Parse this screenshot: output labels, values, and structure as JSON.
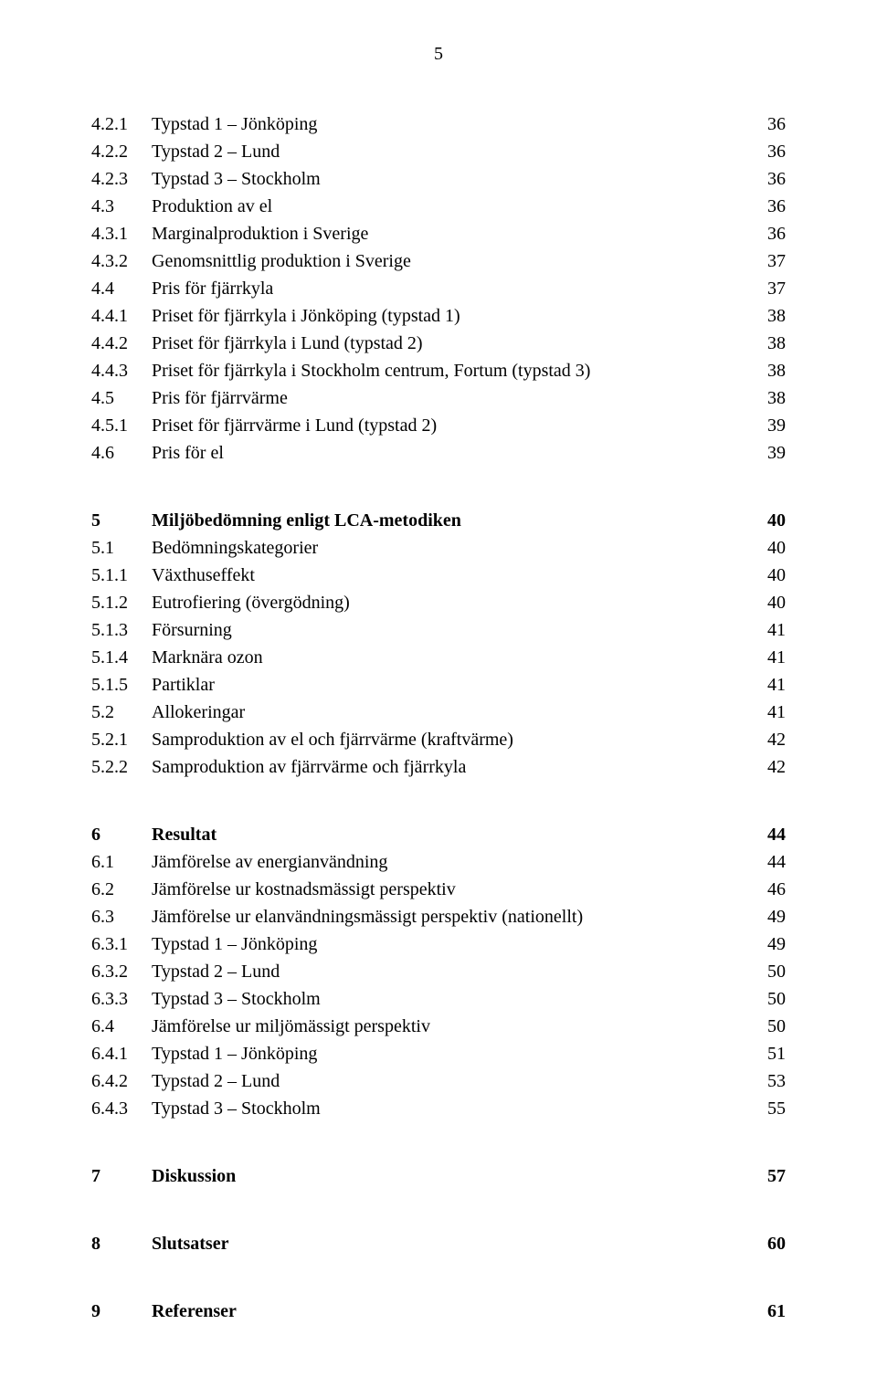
{
  "pageNumber": "5",
  "groups": [
    {
      "head": null,
      "entries": [
        {
          "num": "4.2.1",
          "title": "Typstad 1 – Jönköping",
          "page": "36"
        },
        {
          "num": "4.2.2",
          "title": "Typstad 2 – Lund",
          "page": "36"
        },
        {
          "num": "4.2.3",
          "title": "Typstad 3 – Stockholm",
          "page": "36"
        },
        {
          "num": "4.3",
          "title": "Produktion av el",
          "page": "36"
        },
        {
          "num": "4.3.1",
          "title": "Marginalproduktion i Sverige",
          "page": "36"
        },
        {
          "num": "4.3.2",
          "title": "Genomsnittlig produktion i Sverige",
          "page": "37"
        },
        {
          "num": "4.4",
          "title": "Pris för fjärrkyla",
          "page": "37"
        },
        {
          "num": "4.4.1",
          "title": "Priset för fjärrkyla i Jönköping (typstad 1)",
          "page": "38"
        },
        {
          "num": "4.4.2",
          "title": "Priset för fjärrkyla i Lund (typstad 2)",
          "page": "38"
        },
        {
          "num": "4.4.3",
          "title": "Priset för fjärrkyla i Stockholm centrum, Fortum (typstad 3)",
          "page": "38"
        },
        {
          "num": "4.5",
          "title": "Pris för fjärrvärme",
          "page": "38"
        },
        {
          "num": "4.5.1",
          "title": "Priset för fjärrvärme i Lund (typstad 2)",
          "page": "39"
        },
        {
          "num": "4.6",
          "title": "Pris för el",
          "page": "39"
        }
      ]
    },
    {
      "head": {
        "num": "5",
        "title": "Miljöbedömning enligt LCA-metodiken",
        "page": "40"
      },
      "entries": [
        {
          "num": "5.1",
          "title": "Bedömningskategorier",
          "page": "40"
        },
        {
          "num": "5.1.1",
          "title": "Växthuseffekt",
          "page": "40"
        },
        {
          "num": "5.1.2",
          "title": "Eutrofiering (övergödning)",
          "page": "40"
        },
        {
          "num": "5.1.3",
          "title": "Försurning",
          "page": "41"
        },
        {
          "num": "5.1.4",
          "title": "Marknära ozon",
          "page": "41"
        },
        {
          "num": "5.1.5",
          "title": "Partiklar",
          "page": "41"
        },
        {
          "num": "5.2",
          "title": "Allokeringar",
          "page": "41"
        },
        {
          "num": "5.2.1",
          "title": "Samproduktion av el och fjärrvärme (kraftvärme)",
          "page": "42"
        },
        {
          "num": "5.2.2",
          "title": "Samproduktion av fjärrvärme och fjärrkyla",
          "page": "42"
        }
      ]
    },
    {
      "head": {
        "num": "6",
        "title": "Resultat",
        "page": "44"
      },
      "entries": [
        {
          "num": "6.1",
          "title": "Jämförelse av energianvändning",
          "page": "44"
        },
        {
          "num": "6.2",
          "title": "Jämförelse ur kostnadsmässigt perspektiv",
          "page": "46"
        },
        {
          "num": "6.3",
          "title": "Jämförelse ur elanvändningsmässigt perspektiv (nationellt)",
          "page": "49"
        },
        {
          "num": "6.3.1",
          "title": "Typstad 1 – Jönköping",
          "page": "49"
        },
        {
          "num": "6.3.2",
          "title": "Typstad 2 – Lund",
          "page": "50"
        },
        {
          "num": "6.3.3",
          "title": "Typstad 3 – Stockholm",
          "page": "50"
        },
        {
          "num": "6.4",
          "title": "Jämförelse ur miljömässigt perspektiv",
          "page": "50"
        },
        {
          "num": "6.4.1",
          "title": "Typstad 1 – Jönköping",
          "page": "51"
        },
        {
          "num": "6.4.2",
          "title": "Typstad 2 – Lund",
          "page": "53"
        },
        {
          "num": "6.4.3",
          "title": "Typstad 3 – Stockholm",
          "page": "55"
        }
      ]
    },
    {
      "head": {
        "num": "7",
        "title": "Diskussion",
        "page": "57"
      },
      "entries": []
    },
    {
      "head": {
        "num": "8",
        "title": "Slutsatser",
        "page": "60"
      },
      "entries": []
    },
    {
      "head": {
        "num": "9",
        "title": "Referenser",
        "page": "61"
      },
      "entries": []
    }
  ]
}
